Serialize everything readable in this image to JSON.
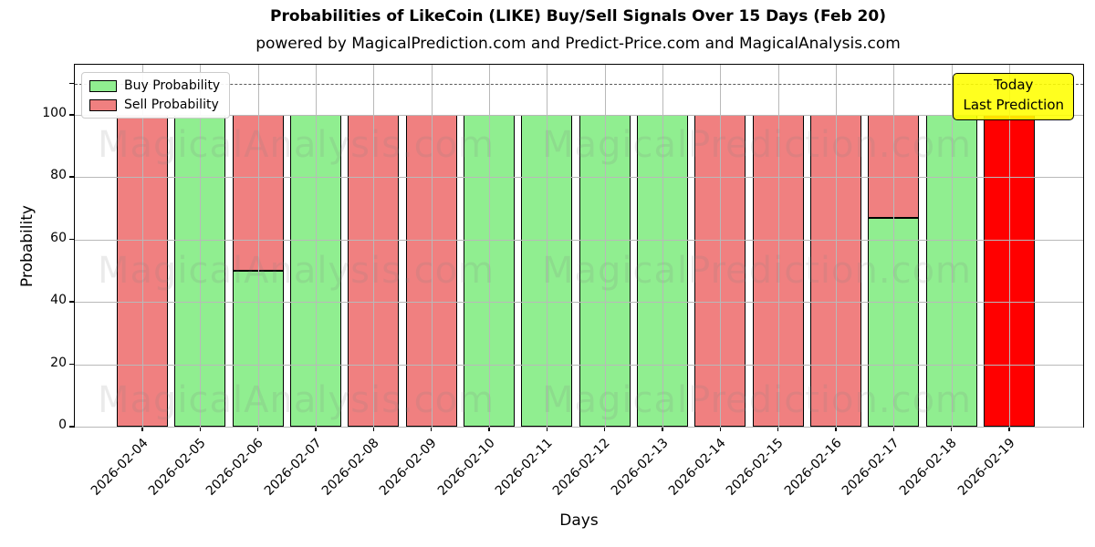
{
  "header": {
    "title": "Probabilities of LikeCoin (LIKE) Buy/Sell Signals Over 15 Days (Feb 20)",
    "subtitle": "powered by MagicalPrediction.com and Predict-Price.com and MagicalAnalysis.com"
  },
  "annotation": {
    "line1": "Today",
    "line2": "Last Prediction",
    "bg_color": "#FFFF00"
  },
  "watermarks": {
    "left_text": "MagicalAnalysis.com",
    "right_text": "MagicalPrediction.com"
  },
  "chart_data": {
    "type": "bar",
    "stacked": true,
    "title": "Probabilities of LikeCoin (LIKE) Buy/Sell Signals Over 15 Days (Feb 20)",
    "subtitle": "powered by MagicalPrediction.com and Predict-Price.com and MagicalAnalysis.com",
    "xlabel": "Days",
    "ylabel": "Probability",
    "ylim": [
      0,
      116
    ],
    "yticks": [
      0,
      20,
      40,
      60,
      80,
      100
    ],
    "extra_ytick": 110,
    "dashed_line_y": 110,
    "grid": true,
    "legend_position": "upper left",
    "categories": [
      "2026-02-04",
      "2026-02-05",
      "2026-02-06",
      "2026-02-07",
      "2026-02-08",
      "2026-02-09",
      "2026-02-10",
      "2026-02-11",
      "2026-02-12",
      "2026-02-13",
      "2026-02-14",
      "2026-02-15",
      "2026-02-16",
      "2026-02-17",
      "2026-02-18",
      "2026-02-19"
    ],
    "series": [
      {
        "name": "Buy Probability",
        "color": "#90EE90",
        "values": [
          0,
          100,
          50,
          100,
          0,
          0,
          100,
          100,
          100,
          100,
          0,
          0,
          0,
          67,
          100,
          0
        ]
      },
      {
        "name": "Sell Probability",
        "color": "#F08080",
        "values": [
          100,
          0,
          50,
          0,
          100,
          100,
          0,
          0,
          0,
          0,
          100,
          100,
          100,
          33,
          0,
          0
        ]
      },
      {
        "name": "Today Last Prediction",
        "color": "#FF0000",
        "values": [
          0,
          0,
          0,
          0,
          0,
          0,
          0,
          0,
          0,
          0,
          0,
          0,
          0,
          0,
          0,
          100
        ],
        "in_legend": false
      }
    ]
  },
  "legend": {
    "items": [
      {
        "label": "Buy Probability",
        "color": "#90EE90"
      },
      {
        "label": "Sell Probability",
        "color": "#F08080"
      }
    ]
  },
  "colors": {
    "buy": "#90EE90",
    "sell": "#F08080",
    "today_bar": "#FF0000",
    "grid": "#b9b9b9",
    "watermark": "rgba(128,128,128,0.16)",
    "annotation_bg": "#FFFF00"
  }
}
